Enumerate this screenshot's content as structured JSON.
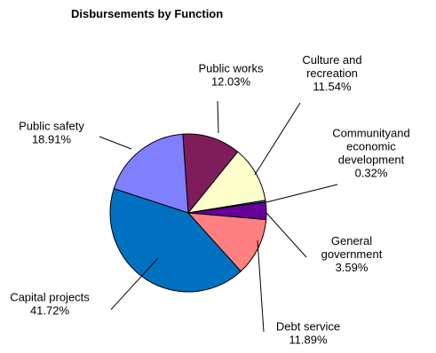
{
  "chart_data": {
    "type": "pie",
    "title": "Disbursements  by Function",
    "slices": [
      {
        "name": "Public works",
        "value": 12.03,
        "label": "12.03%",
        "color": "#7f1d5b"
      },
      {
        "name": "Culture and recreation",
        "value": 11.54,
        "label": "11.54%",
        "color": "#ffffcc"
      },
      {
        "name": "Community and economic development",
        "value": 0.32,
        "label": "0.32%",
        "color": "#00c0c0"
      },
      {
        "name": "General government",
        "value": 3.59,
        "label": "3.59%",
        "color": "#660099"
      },
      {
        "name": "Debt service",
        "value": 11.89,
        "label": "11.89%",
        "color": "#ff8080"
      },
      {
        "name": "Capital projects",
        "value": 41.72,
        "label": "41.72%",
        "color": "#0070c0"
      },
      {
        "name": "Public safety",
        "value": 18.91,
        "label": "18.91%",
        "color": "#8080ff"
      }
    ],
    "label_text": {
      "Public works": [
        "Public works",
        "12.03%"
      ],
      "Culture and recreation": [
        "Culture and",
        "recreation",
        "11.54%"
      ],
      "Community and economic development": [
        "Communityand",
        "economic",
        "development",
        "0.32%"
      ],
      "General government": [
        "General",
        "government",
        "3.59%"
      ],
      "Debt service": [
        "Debt service",
        "11.89%"
      ],
      "Capital projects": [
        "Capital projects",
        "41.72%"
      ],
      "Public safety": [
        "Public safety",
        "18.91%"
      ]
    }
  }
}
